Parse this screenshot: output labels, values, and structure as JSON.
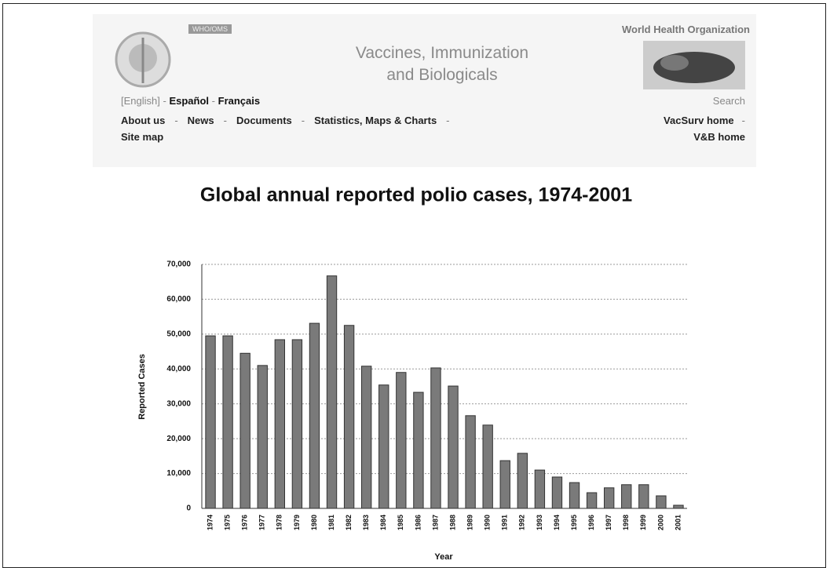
{
  "header": {
    "badge": "WHO/OMS",
    "organization": "World Health Organization",
    "title_lines": [
      "Vaccines, Immunization",
      "and Biologicals"
    ],
    "languages": [
      "[English]",
      "Español",
      "Français"
    ],
    "separator": "-",
    "nav": [
      "About us",
      "News",
      "Documents",
      "Statistics, Maps & Charts",
      "Site map"
    ],
    "search": "Search",
    "right_links": [
      "VacSurv home",
      "V&B home"
    ]
  },
  "chart_data": {
    "type": "bar",
    "title": "Global annual reported polio cases, 1974-2001",
    "x_label": "Year",
    "y_label": "Reported Cases",
    "categories": [
      "1974",
      "1975",
      "1976",
      "1977",
      "1978",
      "1979",
      "1980",
      "1981",
      "1982",
      "1983",
      "1984",
      "1985",
      "1986",
      "1987",
      "1988",
      "1989",
      "1990",
      "1991",
      "1992",
      "1993",
      "1994",
      "1995",
      "1996",
      "1997",
      "1998",
      "1999",
      "2000",
      "2001"
    ],
    "values": [
      49500,
      49500,
      44500,
      41000,
      48400,
      48400,
      53100,
      66700,
      52500,
      40800,
      35400,
      39000,
      33300,
      40300,
      35100,
      26600,
      23900,
      13700,
      15800,
      11000,
      9000,
      7400,
      4500,
      5900,
      6800,
      6800,
      3600,
      900
    ],
    "color": "#7a7a7a",
    "ylim": [
      0,
      70000
    ],
    "yticks": [
      0,
      {
        "value": 10000,
        "label": "10,000"
      },
      {
        "value": 20000,
        "label": "20,000"
      },
      {
        "value": 30000,
        "label": "30,000"
      },
      {
        "value": 40000,
        "label": "40,000"
      },
      {
        "value": 50000,
        "label": "50,000"
      },
      {
        "value": 60000,
        "label": "60,000"
      },
      {
        "value": 70000,
        "label": "70,000"
      }
    ],
    "grid": true
  }
}
